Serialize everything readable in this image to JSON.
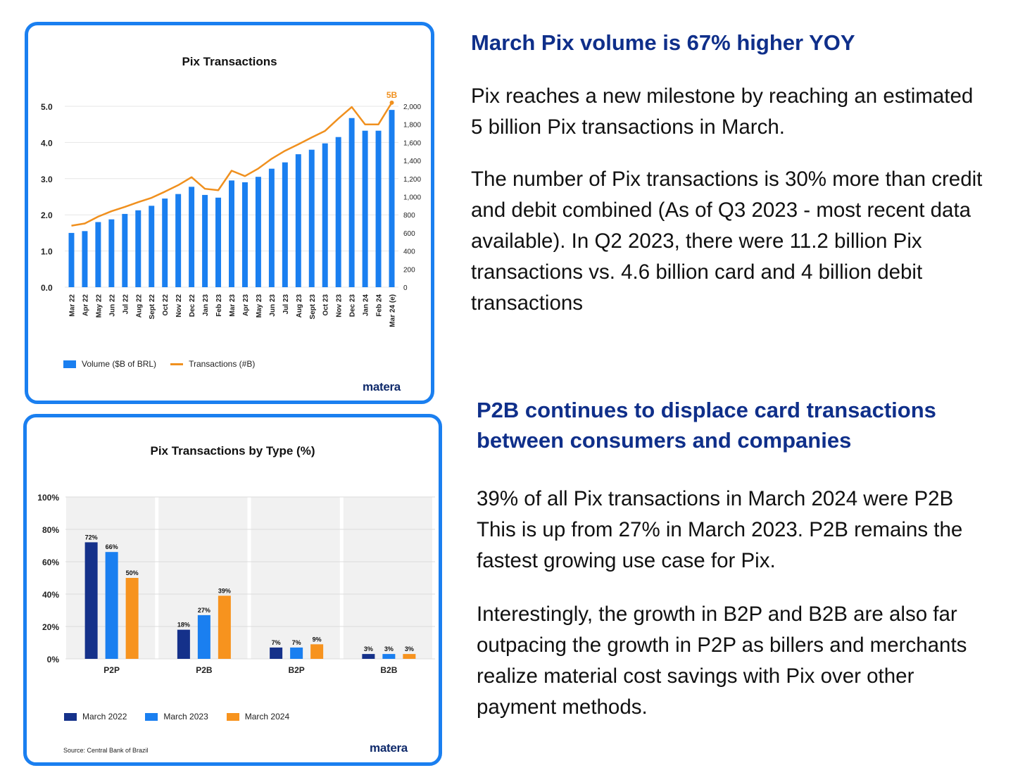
{
  "colors": {
    "card_border": "#1a7ff0",
    "bar_blue": "#1a7ff0",
    "line_orange": "#f0901e",
    "dark_blue": "#15318a",
    "mid_blue": "#1a7ff0",
    "orange": "#f7931e",
    "heading": "#0f2f8a"
  },
  "right": {
    "heading1": "March Pix volume is 67% higher YOY",
    "para1": "Pix reaches a new milestone by reaching an estimated 5 billion Pix transactions in March.",
    "para2": "The number of Pix transactions is 30% more than credit and debit combined (As of Q3 2023 - most recent data available). In Q2 2023, there were 11.2 billion Pix transactions vs. 4.6 billion card and 4 billion debit transactions",
    "heading2": "P2B continues to displace card transactions between consumers and companies",
    "para3": "39% of all Pix transactions in March 2024 were P2B  This is up from 27% in March 2023. P2B remains the fastest growing use case for Pix.",
    "para4": "Interestingly, the growth in B2P and B2B are also far outpacing the growth in P2P as billers and merchants realize material cost savings with Pix over other payment methods."
  },
  "card1": {
    "logo": "matera",
    "legend": {
      "bars": "Volume ($B of BRL)",
      "line": "Transactions (#B)"
    }
  },
  "card2": {
    "logo": "matera",
    "source": "Source: Central Bank of Brazil",
    "legend": [
      "March 2022",
      "March 2023",
      "March 2024"
    ]
  },
  "chart_data": [
    {
      "type": "bar",
      "title": "Pix Transactions",
      "categories": [
        "Mar 22",
        "Apr 22",
        "May 22",
        "Jun 22",
        "Jul 22",
        "Aug 22",
        "Sept 22",
        "Oct 22",
        "Nov 22",
        "Dec 22",
        "Jan 23",
        "Feb 23",
        "Mar 23",
        "Apr 23",
        "May 23",
        "Jun 23",
        "Jul 23",
        "Aug 23",
        "Sept 23",
        "Oct 23",
        "Nov 23",
        "Dec 23",
        "Jan 24",
        "Feb 24",
        "Mar 24 (e)"
      ],
      "series": [
        {
          "name": "Volume ($B of BRL)",
          "type": "bar",
          "axis": "right",
          "values": [
            600,
            620,
            720,
            750,
            810,
            850,
            900,
            980,
            1030,
            1110,
            1020,
            990,
            1180,
            1160,
            1220,
            1310,
            1380,
            1470,
            1520,
            1590,
            1660,
            1870,
            1730,
            1730,
            1960
          ]
        },
        {
          "name": "Transactions (#B)",
          "type": "line",
          "axis": "left",
          "values": [
            1.7,
            1.76,
            1.95,
            2.1,
            2.22,
            2.35,
            2.47,
            2.64,
            2.82,
            3.04,
            2.72,
            2.68,
            3.22,
            3.07,
            3.28,
            3.55,
            3.77,
            3.95,
            4.14,
            4.32,
            4.66,
            4.98,
            4.5,
            4.5,
            5.1
          ]
        }
      ],
      "y_left": {
        "ticks": [
          "0.0",
          "1.0",
          "2.0",
          "3.0",
          "4.0",
          "5.0"
        ],
        "ylim": [
          0,
          5.0
        ]
      },
      "y_right": {
        "ticks": [
          "0",
          "200",
          "400",
          "600",
          "800",
          "1,000",
          "1,200",
          "1,400",
          "1,600",
          "1,800",
          "2,000"
        ],
        "ylim": [
          0,
          2000
        ]
      },
      "annotations": [
        {
          "label": "5B",
          "index": 24
        }
      ],
      "legend_position": "bottom-left"
    },
    {
      "type": "bar",
      "title": "Pix Transactions by Type (%)",
      "categories": [
        "P2P",
        "P2B",
        "B2P",
        "B2B"
      ],
      "series": [
        {
          "name": "March 2022",
          "values": [
            72,
            18,
            7,
            3
          ],
          "labels": [
            "72%",
            "18%",
            "7%",
            "3%"
          ]
        },
        {
          "name": "March 2023",
          "values": [
            66,
            27,
            7,
            3
          ],
          "labels": [
            "66%",
            "27%",
            "7%",
            "3%"
          ]
        },
        {
          "name": "March 2024",
          "values": [
            50,
            39,
            9,
            3
          ],
          "labels": [
            "50%",
            "39%",
            "9%",
            "3%"
          ]
        }
      ],
      "y_ticks": [
        "0%",
        "20%",
        "40%",
        "60%",
        "80%",
        "100%"
      ],
      "ylim": [
        0,
        100
      ],
      "legend_position": "bottom-left"
    }
  ]
}
